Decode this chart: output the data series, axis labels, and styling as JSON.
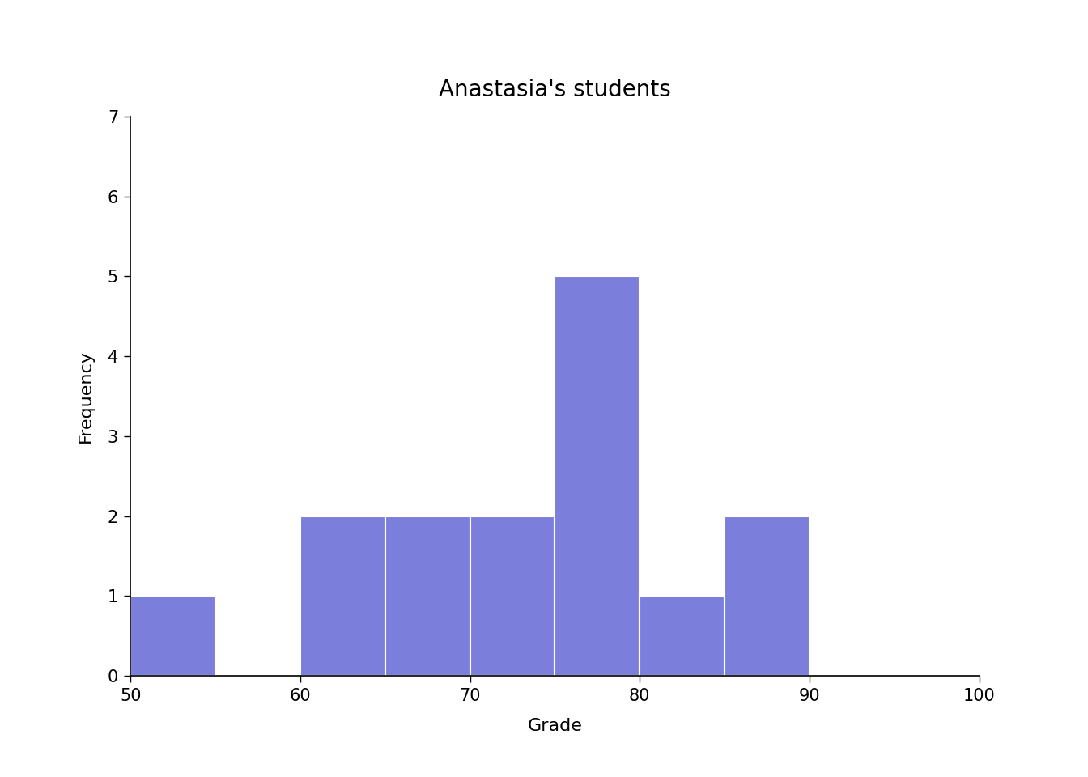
{
  "title": "Anastasia's students",
  "xlabel": "Grade",
  "ylabel": "Frequency",
  "bar_color": "#7b7fdb",
  "bar_edgecolor": "white",
  "background_color": "white",
  "xlim": [
    50,
    100
  ],
  "ylim": [
    0,
    7
  ],
  "xticks": [
    50,
    60,
    70,
    80,
    90,
    100
  ],
  "yticks": [
    0,
    1,
    2,
    3,
    4,
    5,
    6,
    7
  ],
  "bin_edges": [
    50,
    55,
    60,
    65,
    70,
    75,
    80,
    85,
    90,
    95,
    100
  ],
  "frequencies": [
    1,
    0,
    2,
    2,
    2,
    5,
    1,
    2,
    0,
    0
  ],
  "title_fontsize": 20,
  "label_fontsize": 16,
  "tick_fontsize": 15
}
